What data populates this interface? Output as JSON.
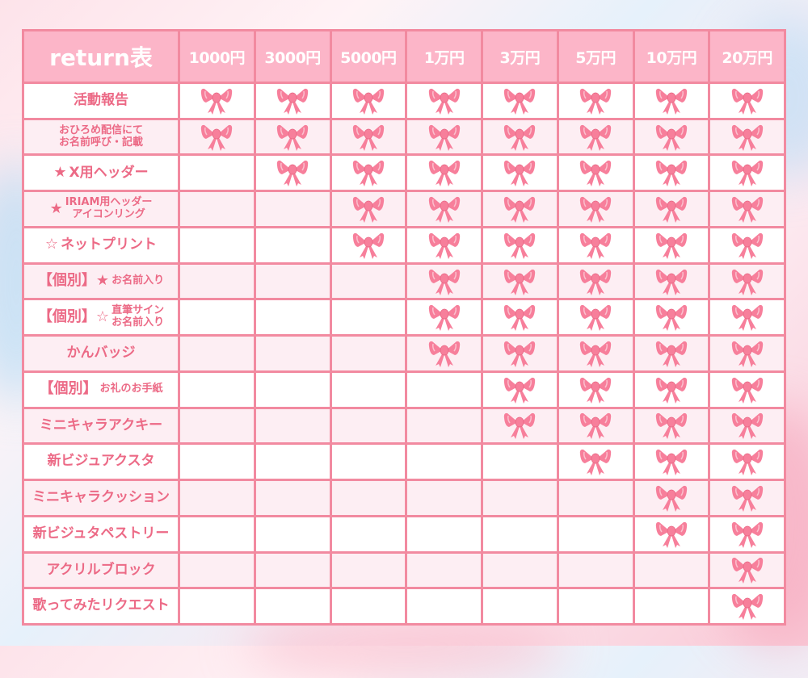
{
  "colors": {
    "accent": "#f28aa0",
    "header_bg": "#fcb5c8",
    "text": "#ec6a86",
    "bow": "#f77f9b",
    "row_alt": "#fdeef3"
  },
  "header": {
    "title": "return表",
    "tiers": [
      "1000円",
      "3000円",
      "5000円",
      "1万円",
      "3万円",
      "5万円",
      "10万円",
      "20万円"
    ]
  },
  "rows": [
    {
      "prefix": "",
      "text": "活動報告",
      "small": false,
      "included": [
        true,
        true,
        true,
        true,
        true,
        true,
        true,
        true
      ]
    },
    {
      "prefix": "",
      "text": "おひろめ配信にて\nお名前呼び・記載",
      "small": true,
      "included": [
        true,
        true,
        true,
        true,
        true,
        true,
        true,
        true
      ]
    },
    {
      "prefix": "★",
      "text": "X用ヘッダー",
      "small": false,
      "included": [
        false,
        true,
        true,
        true,
        true,
        true,
        true,
        true
      ]
    },
    {
      "prefix": "★",
      "text": "IRIAM用ヘッダー\nアイコンリング",
      "small": true,
      "included": [
        false,
        false,
        true,
        true,
        true,
        true,
        true,
        true
      ]
    },
    {
      "prefix": "☆",
      "text": "ネットプリント",
      "small": false,
      "included": [
        false,
        false,
        true,
        true,
        true,
        true,
        true,
        true
      ]
    },
    {
      "prefix": "【個別】★",
      "text": "お名前入り",
      "small": true,
      "included": [
        false,
        false,
        false,
        true,
        true,
        true,
        true,
        true
      ]
    },
    {
      "prefix": "【個別】☆",
      "text": "直筆サイン\nお名前入り",
      "small": true,
      "included": [
        false,
        false,
        false,
        true,
        true,
        true,
        true,
        true
      ]
    },
    {
      "prefix": "",
      "text": "かんバッジ",
      "small": false,
      "included": [
        false,
        false,
        false,
        true,
        true,
        true,
        true,
        true
      ]
    },
    {
      "prefix": "【個別】",
      "text": "お礼のお手紙",
      "small": true,
      "included": [
        false,
        false,
        false,
        false,
        true,
        true,
        true,
        true
      ]
    },
    {
      "prefix": "",
      "text": "ミニキャラアクキー",
      "small": false,
      "included": [
        false,
        false,
        false,
        false,
        true,
        true,
        true,
        true
      ]
    },
    {
      "prefix": "",
      "text": "新ビジュアクスタ",
      "small": false,
      "included": [
        false,
        false,
        false,
        false,
        false,
        true,
        true,
        true
      ]
    },
    {
      "prefix": "",
      "text": "ミニキャラクッション",
      "small": false,
      "included": [
        false,
        false,
        false,
        false,
        false,
        false,
        true,
        true
      ]
    },
    {
      "prefix": "",
      "text": "新ビジュタペストリー",
      "small": false,
      "included": [
        false,
        false,
        false,
        false,
        false,
        false,
        true,
        true
      ]
    },
    {
      "prefix": "",
      "text": "アクリルブロック",
      "small": false,
      "included": [
        false,
        false,
        false,
        false,
        false,
        false,
        false,
        true
      ]
    },
    {
      "prefix": "",
      "text": "歌ってみたリクエスト",
      "small": false,
      "included": [
        false,
        false,
        false,
        false,
        false,
        false,
        false,
        true
      ]
    }
  ]
}
